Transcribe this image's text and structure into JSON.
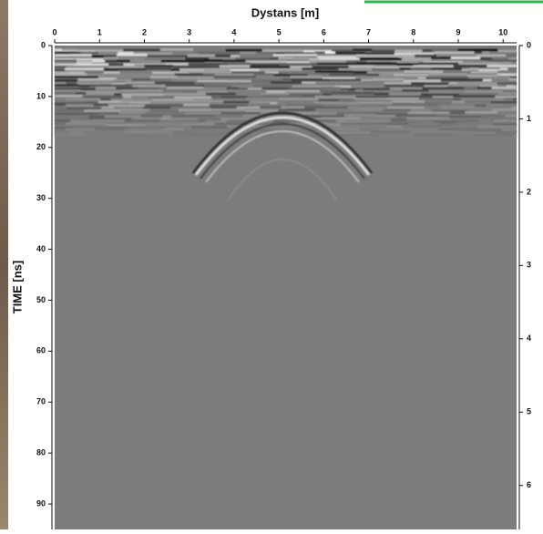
{
  "chart_data": {
    "type": "radargram",
    "title": "Dystans [m]",
    "y_label": "TIME [ns]",
    "xlim": [
      0,
      10.3
    ],
    "xticks": [
      0,
      1,
      2,
      3,
      4,
      5,
      6,
      7,
      8,
      9,
      10
    ],
    "ylim": [
      0,
      95
    ],
    "yticks": [
      0,
      10,
      20,
      30,
      40,
      50,
      60,
      70,
      80,
      90
    ],
    "y2lim": [
      0,
      6.6
    ],
    "y2ticks": [
      0,
      1,
      2,
      3,
      4,
      5,
      6
    ]
  }
}
